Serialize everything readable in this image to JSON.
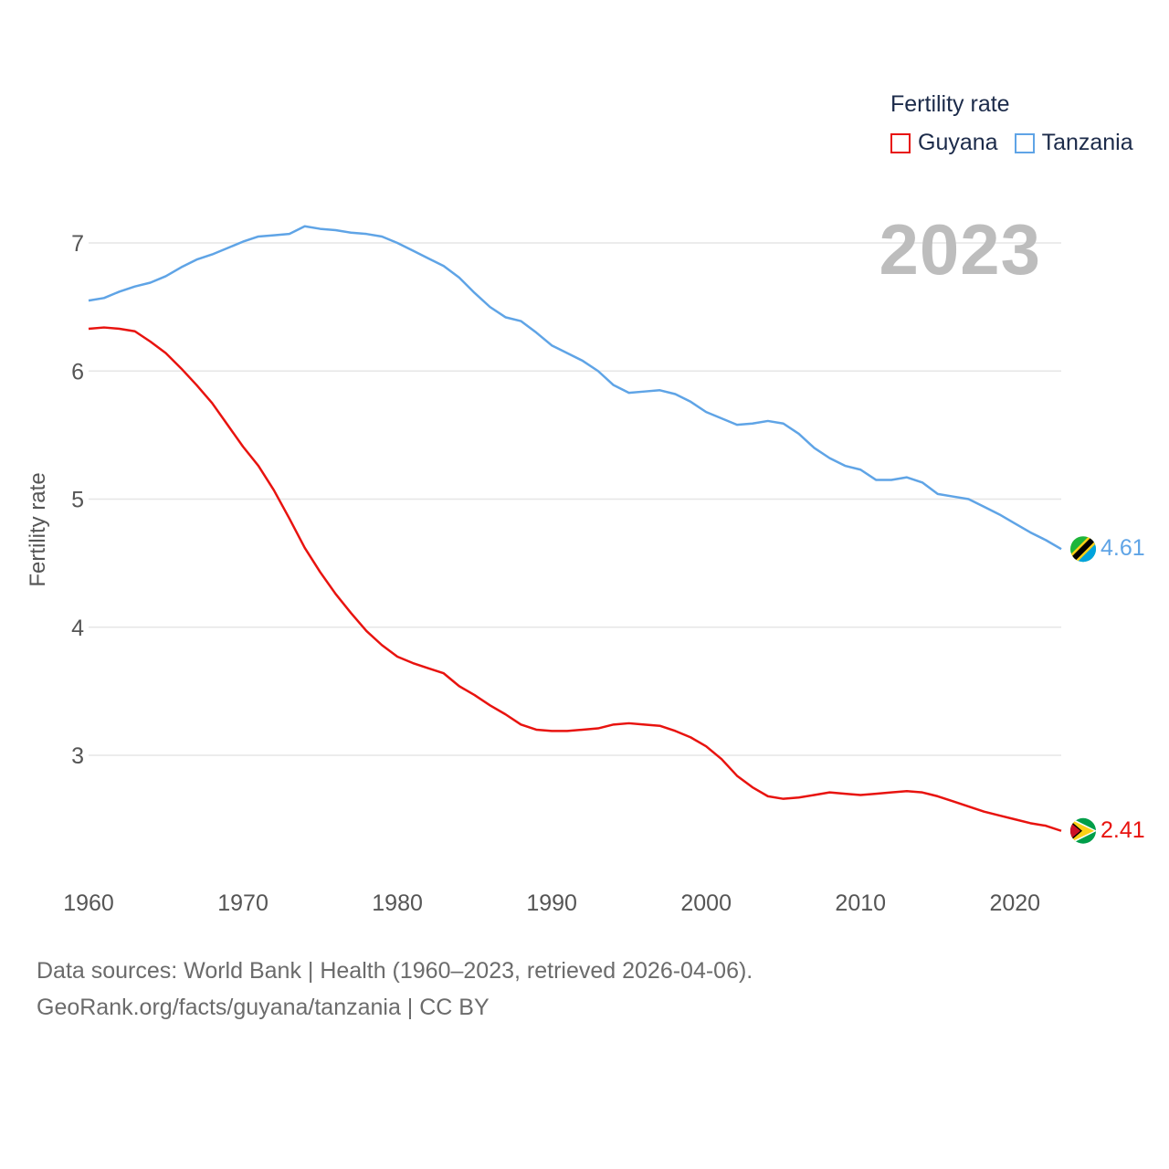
{
  "legend": {
    "title": "Fertility rate",
    "items": [
      {
        "name": "Guyana",
        "color": "#e8130f"
      },
      {
        "name": "Tanzania",
        "color": "#5fa4e6"
      }
    ]
  },
  "year_label": "2023",
  "end_labels": {
    "guyana": "2.41",
    "tanzania": "4.61"
  },
  "footer": {
    "line1": "Data sources: World Bank | Health (1960–2023, retrieved 2026-04-06).",
    "line2": "GeoRank.org/facts/guyana/tanzania | CC BY"
  },
  "chart_data": {
    "type": "line",
    "title": "",
    "xlabel": "",
    "ylabel": "Fertility rate",
    "xlim": [
      1960,
      2023
    ],
    "ylim": [
      2.0,
      7.5
    ],
    "xticks": [
      1960,
      1970,
      1980,
      1990,
      2000,
      2010,
      2020
    ],
    "yticks": [
      3,
      4,
      5,
      6,
      7
    ],
    "grid": true,
    "legend_position": "top-right",
    "x": [
      1960,
      1961,
      1962,
      1963,
      1964,
      1965,
      1966,
      1967,
      1968,
      1969,
      1970,
      1971,
      1972,
      1973,
      1974,
      1975,
      1976,
      1977,
      1978,
      1979,
      1980,
      1981,
      1982,
      1983,
      1984,
      1985,
      1986,
      1987,
      1988,
      1989,
      1990,
      1991,
      1992,
      1993,
      1994,
      1995,
      1996,
      1997,
      1998,
      1999,
      2000,
      2001,
      2002,
      2003,
      2004,
      2005,
      2006,
      2007,
      2008,
      2009,
      2010,
      2011,
      2012,
      2013,
      2014,
      2015,
      2016,
      2017,
      2018,
      2019,
      2020,
      2021,
      2022,
      2023
    ],
    "series": [
      {
        "name": "Guyana",
        "color": "#e8130f",
        "values": [
          6.33,
          6.34,
          6.33,
          6.31,
          6.23,
          6.14,
          6.02,
          5.89,
          5.75,
          5.58,
          5.41,
          5.26,
          5.07,
          4.85,
          4.62,
          4.43,
          4.26,
          4.11,
          3.97,
          3.86,
          3.77,
          3.72,
          3.68,
          3.64,
          3.54,
          3.47,
          3.39,
          3.32,
          3.24,
          3.2,
          3.19,
          3.19,
          3.2,
          3.21,
          3.24,
          3.25,
          3.24,
          3.23,
          3.19,
          3.14,
          3.07,
          2.97,
          2.84,
          2.75,
          2.68,
          2.66,
          2.67,
          2.69,
          2.71,
          2.7,
          2.69,
          2.7,
          2.71,
          2.72,
          2.71,
          2.68,
          2.64,
          2.6,
          2.56,
          2.53,
          2.5,
          2.47,
          2.45,
          2.41
        ]
      },
      {
        "name": "Tanzania",
        "color": "#5fa4e6",
        "values": [
          6.55,
          6.57,
          6.62,
          6.66,
          6.69,
          6.74,
          6.81,
          6.87,
          6.91,
          6.96,
          7.01,
          7.05,
          7.06,
          7.07,
          7.13,
          7.11,
          7.1,
          7.08,
          7.07,
          7.05,
          7.0,
          6.94,
          6.88,
          6.82,
          6.73,
          6.61,
          6.5,
          6.42,
          6.39,
          6.3,
          6.2,
          6.14,
          6.08,
          6.0,
          5.89,
          5.83,
          5.84,
          5.85,
          5.82,
          5.76,
          5.68,
          5.63,
          5.58,
          5.59,
          5.61,
          5.59,
          5.51,
          5.4,
          5.32,
          5.26,
          5.23,
          5.15,
          5.15,
          5.17,
          5.13,
          5.04,
          5.02,
          5.0,
          4.94,
          4.88,
          4.81,
          4.74,
          4.68,
          4.61
        ]
      }
    ]
  }
}
